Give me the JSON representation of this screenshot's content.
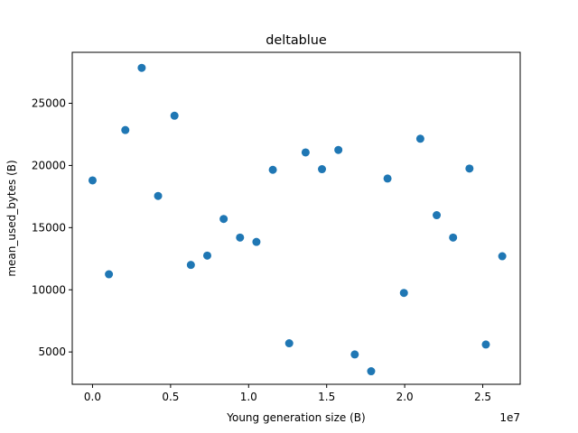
{
  "chart_data": {
    "type": "scatter",
    "title": "deltablue",
    "xlabel": "Young generation size (B)",
    "ylabel": "mean_used_bytes (B)",
    "x_offset_label": "1e7",
    "xlim": [
      -1300000,
      27400000
    ],
    "ylim": [
      2300000,
      29100000
    ],
    "xlim_note": "",
    "xticks": [
      0,
      5000000,
      10000000,
      15000000,
      20000000,
      25000000
    ],
    "xtick_labels": [
      "0.0",
      "0.5",
      "1.0",
      "1.5",
      "2.0",
      "2.5"
    ],
    "yticks": [
      5000,
      10000,
      15000,
      20000,
      25000
    ],
    "ytick_labels": [
      "5000",
      "10000",
      "15000",
      "20000",
      "25000"
    ],
    "ylim_data": [
      2400,
      29100
    ],
    "grid": false,
    "series": [
      {
        "color": "#1f77b4",
        "points": [
          {
            "x": 0,
            "y": 18800
          },
          {
            "x": 1050000,
            "y": 11250
          },
          {
            "x": 2100000,
            "y": 22850
          },
          {
            "x": 3150000,
            "y": 27850
          },
          {
            "x": 4200000,
            "y": 17550
          },
          {
            "x": 5250000,
            "y": 24000
          },
          {
            "x": 6300000,
            "y": 12000
          },
          {
            "x": 7350000,
            "y": 12750
          },
          {
            "x": 8400000,
            "y": 15700
          },
          {
            "x": 9450000,
            "y": 14200
          },
          {
            "x": 10500000,
            "y": 13850
          },
          {
            "x": 11550000,
            "y": 19650
          },
          {
            "x": 12600000,
            "y": 5700
          },
          {
            "x": 13650000,
            "y": 21050
          },
          {
            "x": 14700000,
            "y": 19700
          },
          {
            "x": 15750000,
            "y": 21250
          },
          {
            "x": 16800000,
            "y": 4800
          },
          {
            "x": 17850000,
            "y": 3450
          },
          {
            "x": 18900000,
            "y": 18950
          },
          {
            "x": 19950000,
            "y": 9750
          },
          {
            "x": 21000000,
            "y": 22150
          },
          {
            "x": 22050000,
            "y": 16000
          },
          {
            "x": 23100000,
            "y": 14200
          },
          {
            "x": 24150000,
            "y": 19750
          },
          {
            "x": 25200000,
            "y": 5600
          },
          {
            "x": 26250000,
            "y": 12700
          }
        ]
      }
    ]
  }
}
